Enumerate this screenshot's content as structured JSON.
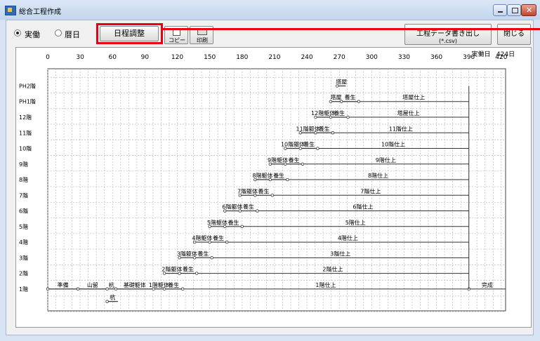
{
  "window": {
    "title": "総合工程作成"
  },
  "toolbar": {
    "radio_jitsudo": "実働",
    "radio_rekibi": "暦日",
    "schedule_adjust_label": "日程調整",
    "copy_label": "コピー",
    "print_label": "印刷",
    "export_label_line1": "工程データ書き出し",
    "export_label_line2": "(*.csv)",
    "close_label": "閉じる"
  },
  "chart_data": {
    "type": "gantt",
    "header_left": "0",
    "header_unit": "実働日",
    "header_total": "424日",
    "x_ticks": [
      "0",
      "30",
      "60",
      "90",
      "120",
      "150",
      "180",
      "210",
      "240",
      "270",
      "300",
      "330",
      "360",
      "390",
      "420"
    ],
    "xlim": [
      0,
      424
    ],
    "floors": [
      "PH2階",
      "PH1階",
      "12階",
      "11階",
      "10階",
      "9階",
      "8階",
      "7階",
      "6階",
      "5階",
      "4階",
      "3階",
      "2階",
      "1階"
    ],
    "tasks": [
      {
        "row": "below-1",
        "name": "杭",
        "start": 55,
        "end": 65
      },
      {
        "row": "1階",
        "name": "準備",
        "start": 0,
        "end": 28
      },
      {
        "row": "1階",
        "name": "山留",
        "start": 28,
        "end": 55
      },
      {
        "row": "1階",
        "name": "杭",
        "start": 55,
        "end": 63
      },
      {
        "row": "1階",
        "name": "基礎躯体",
        "start": 63,
        "end": 98
      },
      {
        "row": "1階",
        "name": "1階躯体",
        "start": 98,
        "end": 108
      },
      {
        "row": "1階",
        "name": "養生",
        "start": 108,
        "end": 125
      },
      {
        "row": "1階",
        "name": "1階仕上",
        "start": 125,
        "end": 390
      },
      {
        "row": "1階",
        "name": "完成",
        "start": 390,
        "end": 424
      },
      {
        "row": "2階",
        "name": "2階躯体",
        "start": 108,
        "end": 122
      },
      {
        "row": "2階",
        "name": "養生",
        "start": 122,
        "end": 138
      },
      {
        "row": "2階",
        "name": "2階仕上",
        "start": 138,
        "end": 390
      },
      {
        "row": "3階",
        "name": "3階躯体",
        "start": 122,
        "end": 136
      },
      {
        "row": "3階",
        "name": "養生",
        "start": 136,
        "end": 152
      },
      {
        "row": "3階",
        "name": "3階仕上",
        "start": 152,
        "end": 390
      },
      {
        "row": "4階",
        "name": "4階躯体",
        "start": 136,
        "end": 150
      },
      {
        "row": "4階",
        "name": "養生",
        "start": 150,
        "end": 166
      },
      {
        "row": "4階",
        "name": "4階仕上",
        "start": 166,
        "end": 390
      },
      {
        "row": "5階",
        "name": "5階躯体",
        "start": 150,
        "end": 164
      },
      {
        "row": "5階",
        "name": "養生",
        "start": 164,
        "end": 180
      },
      {
        "row": "5階",
        "name": "5階仕上",
        "start": 180,
        "end": 390
      },
      {
        "row": "6階",
        "name": "6階躯体",
        "start": 164,
        "end": 178
      },
      {
        "row": "6階",
        "name": "養生",
        "start": 178,
        "end": 194
      },
      {
        "row": "6階",
        "name": "6階仕上",
        "start": 194,
        "end": 390
      },
      {
        "row": "7階",
        "name": "7階躯体",
        "start": 178,
        "end": 192
      },
      {
        "row": "7階",
        "name": "養生",
        "start": 192,
        "end": 208
      },
      {
        "row": "7階",
        "name": "7階仕上",
        "start": 208,
        "end": 390
      },
      {
        "row": "8階",
        "name": "8階躯体",
        "start": 192,
        "end": 206
      },
      {
        "row": "8階",
        "name": "養生",
        "start": 206,
        "end": 222
      },
      {
        "row": "8階",
        "name": "8階仕上",
        "start": 222,
        "end": 390
      },
      {
        "row": "9階",
        "name": "9階躯体",
        "start": 206,
        "end": 220
      },
      {
        "row": "9階",
        "name": "養生",
        "start": 220,
        "end": 236
      },
      {
        "row": "9階",
        "name": "9階仕上",
        "start": 236,
        "end": 390
      },
      {
        "row": "10階",
        "name": "10階躯体",
        "start": 220,
        "end": 234
      },
      {
        "row": "10階",
        "name": "養生",
        "start": 234,
        "end": 250
      },
      {
        "row": "10階",
        "name": "10階仕上",
        "start": 250,
        "end": 390
      },
      {
        "row": "11階",
        "name": "11階躯体",
        "start": 234,
        "end": 248
      },
      {
        "row": "11階",
        "name": "養生",
        "start": 248,
        "end": 264
      },
      {
        "row": "11階",
        "name": "11階仕上",
        "start": 264,
        "end": 390
      },
      {
        "row": "12階",
        "name": "12階躯体",
        "start": 248,
        "end": 262
      },
      {
        "row": "12階",
        "name": "養生",
        "start": 262,
        "end": 278
      },
      {
        "row": "12階",
        "name": "塔屋仕上",
        "start": 278,
        "end": 390
      },
      {
        "row": "PH1階",
        "name": "塔屋",
        "start": 262,
        "end": 272
      },
      {
        "row": "PH1階",
        "name": "養生",
        "start": 272,
        "end": 288
      },
      {
        "row": "PH1階",
        "name": "塔屋仕上",
        "start": 288,
        "end": 390
      },
      {
        "row": "PH2階",
        "name": "塔屋",
        "start": 268,
        "end": 276
      }
    ],
    "grid": true
  }
}
